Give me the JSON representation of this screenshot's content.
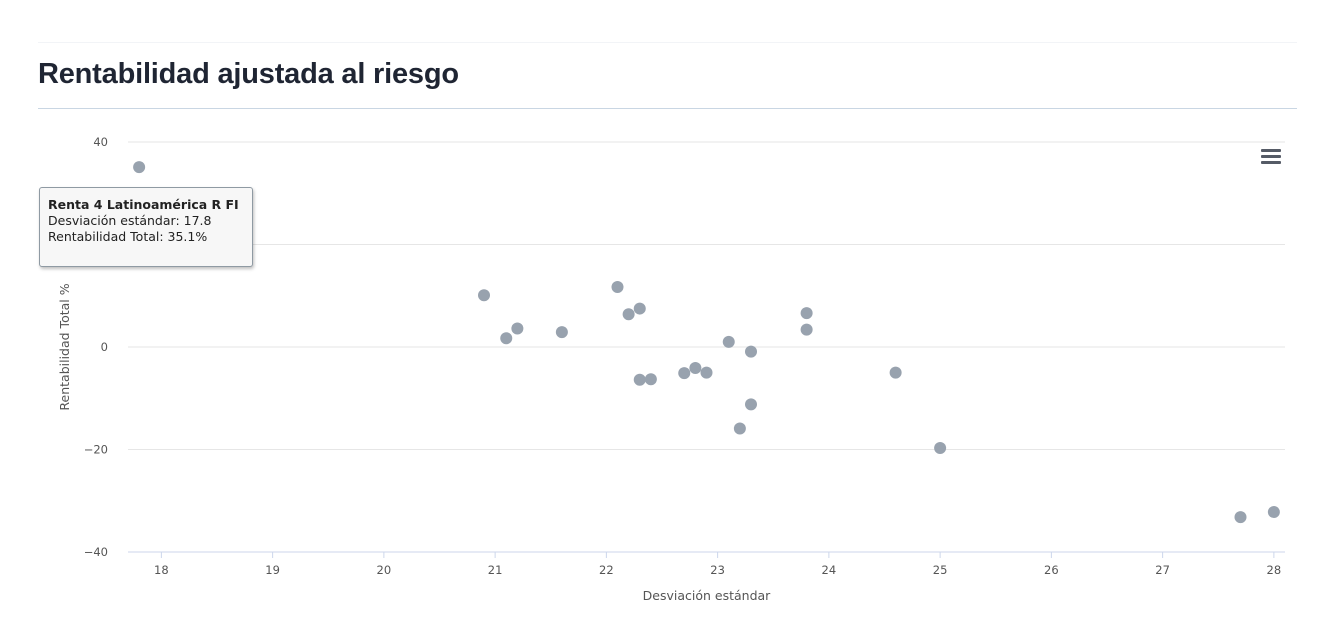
{
  "header": {
    "title": "Rentabilidad ajustada al riesgo"
  },
  "tooltip": {
    "name": "Renta 4 Latinoamérica R FI",
    "x_line": "Desviación estándar: 17.8",
    "y_line": "Rentabilidad Total: 35.1%"
  },
  "menu": {
    "icon": "hamburger-menu-icon"
  },
  "colors": {
    "point": "#98a2ae",
    "grid": "#e6e6e6",
    "title": "#1f2533"
  },
  "chart_data": {
    "type": "scatter",
    "title": "Rentabilidad ajustada al riesgo",
    "xlabel": "Desviación estándar",
    "ylabel": "Rentabilidad Total %",
    "xlim": [
      17.7,
      28.1
    ],
    "ylim": [
      -40,
      40
    ],
    "xticks": [
      18,
      19,
      20,
      21,
      22,
      23,
      24,
      25,
      26,
      27,
      28
    ],
    "yticks": [
      40,
      0,
      -20,
      -40
    ],
    "grid": true,
    "points": [
      {
        "x": 17.8,
        "y": 35.1
      },
      {
        "x": 20.9,
        "y": 10.1
      },
      {
        "x": 21.1,
        "y": 1.7
      },
      {
        "x": 21.2,
        "y": 3.6
      },
      {
        "x": 21.6,
        "y": 2.9
      },
      {
        "x": 22.1,
        "y": 11.7
      },
      {
        "x": 22.2,
        "y": 6.4
      },
      {
        "x": 22.3,
        "y": 7.5
      },
      {
        "x": 22.3,
        "y": -6.4
      },
      {
        "x": 22.4,
        "y": -6.3
      },
      {
        "x": 22.7,
        "y": -5.1
      },
      {
        "x": 22.8,
        "y": -4.1
      },
      {
        "x": 22.9,
        "y": -5.0
      },
      {
        "x": 23.1,
        "y": 1.0
      },
      {
        "x": 23.2,
        "y": -15.9
      },
      {
        "x": 23.3,
        "y": -0.9
      },
      {
        "x": 23.3,
        "y": -11.2
      },
      {
        "x": 23.8,
        "y": 6.6
      },
      {
        "x": 23.8,
        "y": 3.4
      },
      {
        "x": 24.6,
        "y": -5.0
      },
      {
        "x": 25.0,
        "y": -19.7
      },
      {
        "x": 27.7,
        "y": -33.2
      },
      {
        "x": 28.0,
        "y": -32.2
      }
    ]
  }
}
